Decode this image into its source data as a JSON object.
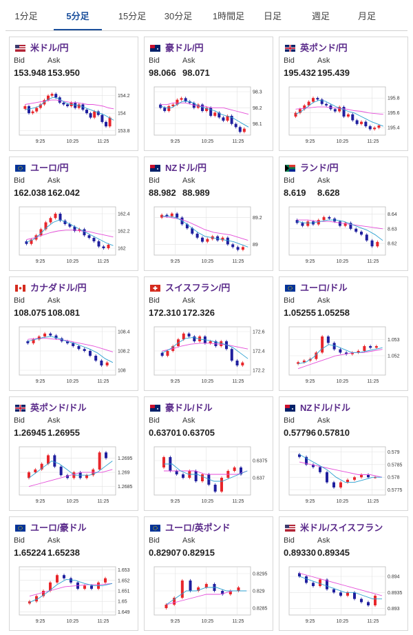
{
  "tabs": [
    "1分足",
    "5分足",
    "15分足",
    "30分足",
    "1時間足",
    "日足",
    "週足",
    "月足"
  ],
  "active_tab": 1,
  "labels": {
    "bid": "Bid",
    "ask": "Ask"
  },
  "colors": {
    "up": "#e8262b",
    "down": "#1f1f9e",
    "ma_fast": "#2aa0d0",
    "ma_slow": "#e44ad8",
    "pair_name": "#5a2a8a"
  },
  "pairs": [
    {
      "name": "米ドル/円",
      "flag": "us-jp-flag",
      "bid": "153.948",
      "ask": "153.950",
      "yticks": [
        "154.2",
        "154",
        "153.8"
      ],
      "xticks": [
        "9:25",
        "10:25",
        "11:25"
      ],
      "chart_data": {
        "type": "candlestick",
        "ylim": [
          153.75,
          154.3
        ],
        "series": [
          154.05,
          154.08,
          154.0,
          154.02,
          154.06,
          154.1,
          154.15,
          154.2,
          154.22,
          154.18,
          154.12,
          154.1,
          154.08,
          154.12,
          154.06,
          154.1,
          154.04,
          154.0,
          153.95,
          154.02,
          153.98,
          153.9,
          153.85,
          153.95
        ],
        "ma_fast": [
          154.04,
          154.05,
          154.06,
          154.08,
          154.12,
          154.16,
          154.18,
          154.17,
          154.14,
          154.11,
          154.1,
          154.09,
          154.08,
          154.06,
          154.04,
          154.02,
          154.0,
          153.98,
          153.95,
          153.92
        ],
        "ma_slow": [
          154.1,
          154.11,
          154.12,
          154.13,
          154.14,
          154.15,
          154.15,
          154.14,
          154.13,
          154.12,
          154.12,
          154.11,
          154.1,
          154.1,
          154.09,
          154.08,
          154.06,
          154.05
        ]
      }
    },
    {
      "name": "豪ドル/円",
      "flag": "au-jp-flag",
      "bid": "98.066",
      "ask": "98.071",
      "yticks": [
        "98.3",
        "98.2",
        "98.1"
      ],
      "xticks": [
        "9:25",
        "10:25",
        "11:25"
      ],
      "chart_data": {
        "type": "candlestick",
        "ylim": [
          98.03,
          98.33
        ],
        "series": [
          98.22,
          98.2,
          98.18,
          98.21,
          98.22,
          98.25,
          98.26,
          98.24,
          98.23,
          98.2,
          98.22,
          98.18,
          98.2,
          98.15,
          98.17,
          98.14,
          98.12,
          98.15,
          98.1,
          98.08,
          98.05,
          98.07
        ],
        "ma_fast": [
          98.21,
          98.2,
          98.2,
          98.22,
          98.24,
          98.24,
          98.23,
          98.21,
          98.2,
          98.19,
          98.18,
          98.16,
          98.15,
          98.14,
          98.12,
          98.1,
          98.08
        ],
        "ma_slow": [
          98.22,
          98.22,
          98.23,
          98.23,
          98.23,
          98.22,
          98.21,
          98.21,
          98.2,
          98.2,
          98.2,
          98.19,
          98.18,
          98.17,
          98.16
        ]
      }
    },
    {
      "name": "英ポンド/円",
      "flag": "gb-jp-flag",
      "bid": "195.432",
      "ask": "195.439",
      "yticks": [
        "195.8",
        "195.6",
        "195.4"
      ],
      "xticks": [
        "9:25",
        "10:25",
        "11:25"
      ],
      "chart_data": {
        "type": "candlestick",
        "ylim": [
          195.3,
          195.95
        ],
        "series": [
          195.55,
          195.6,
          195.65,
          195.7,
          195.75,
          195.8,
          195.78,
          195.72,
          195.7,
          195.65,
          195.62,
          195.68,
          195.55,
          195.58,
          195.5,
          195.45,
          195.48,
          195.42,
          195.38,
          195.4,
          195.43
        ],
        "ma_fast": [
          195.58,
          195.62,
          195.68,
          195.74,
          195.77,
          195.76,
          195.72,
          195.68,
          195.65,
          195.62,
          195.6,
          195.56,
          195.52,
          195.48,
          195.45,
          195.42
        ],
        "ma_slow": [
          195.65,
          195.66,
          195.67,
          195.68,
          195.68,
          195.67,
          195.66,
          195.65,
          195.63,
          195.62,
          195.6,
          195.59,
          195.58
        ]
      }
    },
    {
      "name": "ユーロ/円",
      "flag": "eu-jp-flag",
      "bid": "162.038",
      "ask": "162.042",
      "yticks": [
        "162.4",
        "162.2",
        "162"
      ],
      "xticks": [
        "9:25",
        "10:25",
        "11:25"
      ],
      "chart_data": {
        "type": "candlestick",
        "ylim": [
          161.92,
          162.48
        ],
        "series": [
          162.08,
          162.05,
          162.1,
          162.15,
          162.22,
          162.3,
          162.35,
          162.4,
          162.32,
          162.28,
          162.25,
          162.2,
          162.22,
          162.15,
          162.12,
          162.08,
          162.02,
          162.0,
          162.04
        ],
        "ma_fast": [
          162.07,
          162.1,
          162.16,
          162.24,
          162.3,
          162.33,
          162.3,
          162.26,
          162.22,
          162.18,
          162.14,
          162.1,
          162.06,
          162.03
        ],
        "ma_slow": [
          162.1,
          162.12,
          162.15,
          162.18,
          162.2,
          162.21,
          162.21,
          162.2,
          162.19,
          162.17,
          162.15,
          162.13
        ]
      }
    },
    {
      "name": "NZドル/円",
      "flag": "nz-jp-flag",
      "bid": "88.982",
      "ask": "88.989",
      "yticks": [
        "89.2",
        "89"
      ],
      "xticks": [
        "9:25",
        "10:25",
        "11:25"
      ],
      "chart_data": {
        "type": "candlestick",
        "ylim": [
          88.92,
          89.28
        ],
        "series": [
          89.2,
          89.22,
          89.21,
          89.23,
          89.2,
          89.15,
          89.12,
          89.08,
          89.05,
          89.02,
          89.04,
          89.06,
          89.03,
          89.05,
          89.0,
          88.98,
          88.96,
          88.98
        ],
        "ma_fast": [
          89.21,
          89.21,
          89.2,
          89.17,
          89.13,
          89.09,
          89.06,
          89.05,
          89.04,
          89.03,
          89.02,
          89.0,
          88.98
        ],
        "ma_slow": [
          89.21,
          89.2,
          89.19,
          89.17,
          89.14,
          89.11,
          89.09,
          89.08,
          89.07,
          89.05,
          89.03
        ]
      }
    },
    {
      "name": "ランド/円",
      "flag": "za-jp-flag",
      "bid": "8.619",
      "ask": "8.628",
      "yticks": [
        "8.64",
        "8.63",
        "8.62"
      ],
      "xticks": [
        "9:25",
        "10:25",
        "11:25"
      ],
      "chart_data": {
        "type": "candlestick",
        "ylim": [
          8.612,
          8.645
        ],
        "series": [
          8.636,
          8.634,
          8.632,
          8.635,
          8.633,
          8.636,
          8.638,
          8.637,
          8.635,
          8.632,
          8.634,
          8.63,
          8.628,
          8.626,
          8.622,
          8.618,
          8.621
        ],
        "ma_fast": [
          8.635,
          8.634,
          8.634,
          8.635,
          8.636,
          8.636,
          8.635,
          8.633,
          8.631,
          8.629,
          8.626,
          8.622
        ],
        "ma_slow": [
          8.636,
          8.636,
          8.635,
          8.635,
          8.634,
          8.633,
          8.632,
          8.631,
          8.63
        ]
      }
    },
    {
      "name": "カナダドル/円",
      "flag": "ca-jp-flag",
      "bid": "108.075",
      "ask": "108.081",
      "yticks": [
        "108.4",
        "108.2",
        "108"
      ],
      "xticks": [
        "9:25",
        "10:25",
        "11:25"
      ],
      "chart_data": {
        "type": "candlestick",
        "ylim": [
          107.95,
          108.45
        ],
        "series": [
          108.3,
          108.28,
          108.32,
          108.35,
          108.38,
          108.36,
          108.33,
          108.3,
          108.28,
          108.25,
          108.22,
          108.2,
          108.15,
          108.1,
          108.05,
          108.08
        ],
        "ma_fast": [
          108.3,
          108.32,
          108.34,
          108.35,
          108.33,
          108.3,
          108.28,
          108.25,
          108.22,
          108.18,
          108.12,
          108.08
        ],
        "ma_slow": [
          108.32,
          108.33,
          108.33,
          108.32,
          108.31,
          108.29,
          108.27,
          108.25,
          108.22,
          108.19
        ]
      }
    },
    {
      "name": "スイスフラン/円",
      "flag": "ch-jp-flag",
      "bid": "172.310",
      "ask": "172.326",
      "yticks": [
        "172.6",
        "172.4",
        "172.2"
      ],
      "xticks": [
        "9:25",
        "10:25",
        "11:25"
      ],
      "chart_data": {
        "type": "candlestick",
        "ylim": [
          172.15,
          172.65
        ],
        "series": [
          172.38,
          172.35,
          172.4,
          172.45,
          172.52,
          172.58,
          172.55,
          172.5,
          172.55,
          172.48,
          172.5,
          172.45,
          172.5,
          172.42,
          172.3,
          172.25,
          172.28
        ],
        "ma_fast": [
          172.38,
          172.42,
          172.48,
          172.53,
          172.54,
          172.52,
          172.51,
          172.49,
          172.47,
          172.44,
          172.38,
          172.32
        ],
        "ma_slow": [
          172.4,
          172.42,
          172.45,
          172.47,
          172.48,
          172.48,
          172.47,
          172.46,
          172.44,
          172.42
        ]
      }
    },
    {
      "name": "ユーロ/ドル",
      "flag": "eu-us-flag",
      "bid": "1.05255",
      "ask": "1.05258",
      "yticks": [
        "1.053",
        "1.052"
      ],
      "xticks": [
        "9:25",
        "10:25",
        "11:25"
      ],
      "chart_data": {
        "type": "candlestick",
        "ylim": [
          1.0508,
          1.0538
        ],
        "series": [
          1.0515,
          1.0516,
          1.0517,
          1.0518,
          1.0522,
          1.0532,
          1.0528,
          1.0524,
          1.0522,
          1.0521,
          1.0522,
          1.0523,
          1.0526,
          1.0525,
          1.0526
        ],
        "ma_fast": [
          1.0515,
          1.0516,
          1.0519,
          1.0524,
          1.0527,
          1.0526,
          1.0524,
          1.0522,
          1.0522,
          1.0523,
          1.0524,
          1.0525
        ],
        "ma_slow": [
          1.0512,
          1.0514,
          1.0516,
          1.0518,
          1.052,
          1.0521,
          1.0522,
          1.0522,
          1.0523,
          1.0524
        ]
      }
    },
    {
      "name": "英ポンド/ドル",
      "flag": "gb-us-flag",
      "bid": "1.26945",
      "ask": "1.26955",
      "yticks": [
        "1.2695",
        "1.269",
        "1.2685"
      ],
      "xticks": [
        "9:25",
        "10:25",
        "11:25"
      ],
      "chart_data": {
        "type": "candlestick",
        "ylim": [
          1.2682,
          1.2699
        ],
        "series": [
          1.2688,
          1.269,
          1.2691,
          1.2693,
          1.2696,
          1.2692,
          1.2689,
          1.2688,
          1.269,
          1.2688,
          1.2689,
          1.2691,
          1.2697,
          1.2695
        ],
        "ma_fast": [
          1.2688,
          1.269,
          1.2692,
          1.2694,
          1.2693,
          1.2691,
          1.2689,
          1.2689,
          1.2689,
          1.269,
          1.2692,
          1.2694
        ],
        "ma_slow": [
          1.2685,
          1.2686,
          1.2687,
          1.2688,
          1.2689,
          1.269,
          1.269,
          1.269,
          1.2691
        ]
      }
    },
    {
      "name": "豪ドル/ドル",
      "flag": "au-us-flag",
      "bid": "0.63701",
      "ask": "0.63705",
      "yticks": [
        "0.6375",
        "0.637"
      ],
      "xticks": [
        "9:25",
        "10:25",
        "11:25"
      ],
      "chart_data": {
        "type": "candlestick",
        "ylim": [
          0.6365,
          0.6379
        ],
        "series": [
          0.6373,
          0.6376,
          0.6372,
          0.6371,
          0.637,
          0.6372,
          0.6369,
          0.6371,
          0.6368,
          0.6366,
          0.637,
          0.6372,
          0.6373,
          0.6371
        ],
        "ma_fast": [
          0.6374,
          0.6374,
          0.6372,
          0.6371,
          0.6371,
          0.637,
          0.6369,
          0.6369,
          0.637,
          0.6371,
          0.6372
        ],
        "ma_slow": [
          0.6372,
          0.6372,
          0.6372,
          0.6372,
          0.6371,
          0.6371,
          0.6371,
          0.6371,
          0.6372
        ]
      }
    },
    {
      "name": "NZドル/ドル",
      "flag": "nz-us-flag",
      "bid": "0.57796",
      "ask": "0.57810",
      "yticks": [
        "0.579",
        "0.5785",
        "0.578",
        "0.5775"
      ],
      "xticks": [
        "9:25",
        "10:25",
        "11:25"
      ],
      "chart_data": {
        "type": "candlestick",
        "ylim": [
          0.5773,
          0.5792
        ],
        "series": [
          0.5789,
          0.5788,
          0.5785,
          0.5784,
          0.5782,
          0.5778,
          0.5776,
          0.5778,
          0.5779,
          0.578,
          0.5781,
          0.578,
          0.578
        ],
        "ma_fast": [
          0.5789,
          0.5787,
          0.5785,
          0.5783,
          0.578,
          0.5778,
          0.5778,
          0.5779,
          0.578,
          0.578
        ],
        "ma_slow": [
          0.5786,
          0.5785,
          0.5784,
          0.5783,
          0.5782,
          0.5781,
          0.5781,
          0.578
        ]
      }
    },
    {
      "name": "ユーロ/豪ドル",
      "flag": "eu-au-flag",
      "bid": "1.65224",
      "ask": "1.65238",
      "yticks": [
        "1.653",
        "1.652",
        "1.651",
        "1.65",
        "1.649"
      ],
      "xticks": [
        "9:25",
        "10:25",
        "11:25"
      ],
      "chart_data": {
        "type": "candlestick",
        "ylim": [
          1.6487,
          1.6533
        ],
        "series": [
          1.6498,
          1.65,
          1.6505,
          1.651,
          1.6518,
          1.6525,
          1.6522,
          1.6518,
          1.6512,
          1.6515,
          1.6512,
          1.6518,
          1.6522
        ],
        "ma_fast": [
          1.6499,
          1.6503,
          1.6509,
          1.6516,
          1.6521,
          1.652,
          1.6517,
          1.6515,
          1.6515,
          1.6517
        ],
        "ma_slow": [
          1.6505,
          1.6508,
          1.6511,
          1.6514,
          1.6515,
          1.6516,
          1.6516,
          1.6517
        ]
      }
    },
    {
      "name": "ユーロ/英ポンド",
      "flag": "eu-gb-flag",
      "bid": "0.82907",
      "ask": "0.82915",
      "yticks": [
        "0.8295",
        "0.829",
        "0.8285"
      ],
      "xticks": [
        "9:25",
        "10:25",
        "11:25"
      ],
      "chart_data": {
        "type": "candlestick",
        "ylim": [
          0.8283,
          0.8297
        ],
        "series": [
          0.8285,
          0.8286,
          0.8288,
          0.8293,
          0.829,
          0.8291,
          0.8292,
          0.829,
          0.8289,
          0.829,
          0.8291
        ],
        "ma_fast": [
          0.8286,
          0.8288,
          0.829,
          0.829,
          0.8291,
          0.8291,
          0.829,
          0.829,
          0.829
        ],
        "ma_slow": [
          0.8286,
          0.8287,
          0.8288,
          0.8289,
          0.8289,
          0.829,
          0.829
        ]
      }
    },
    {
      "name": "米ドル/スイスフラン",
      "flag": "us-ch-flag",
      "bid": "0.89330",
      "ask": "0.89345",
      "yticks": [
        "0.894",
        "0.8935",
        "0.893"
      ],
      "xticks": [
        "9:25",
        "10:25",
        "11:25"
      ],
      "chart_data": {
        "type": "candlestick",
        "ylim": [
          0.8928,
          0.8943
        ],
        "series": [
          0.8941,
          0.894,
          0.8938,
          0.8937,
          0.8939,
          0.8936,
          0.8935,
          0.8934,
          0.8935,
          0.8933,
          0.8932,
          0.8931,
          0.8934
        ],
        "ma_fast": [
          0.894,
          0.8939,
          0.8938,
          0.8937,
          0.8936,
          0.8935,
          0.8935,
          0.8934,
          0.8933,
          0.8933
        ],
        "ma_slow": [
          0.8941,
          0.894,
          0.8939,
          0.8938,
          0.8937,
          0.8936,
          0.8935,
          0.8934
        ]
      }
    }
  ]
}
